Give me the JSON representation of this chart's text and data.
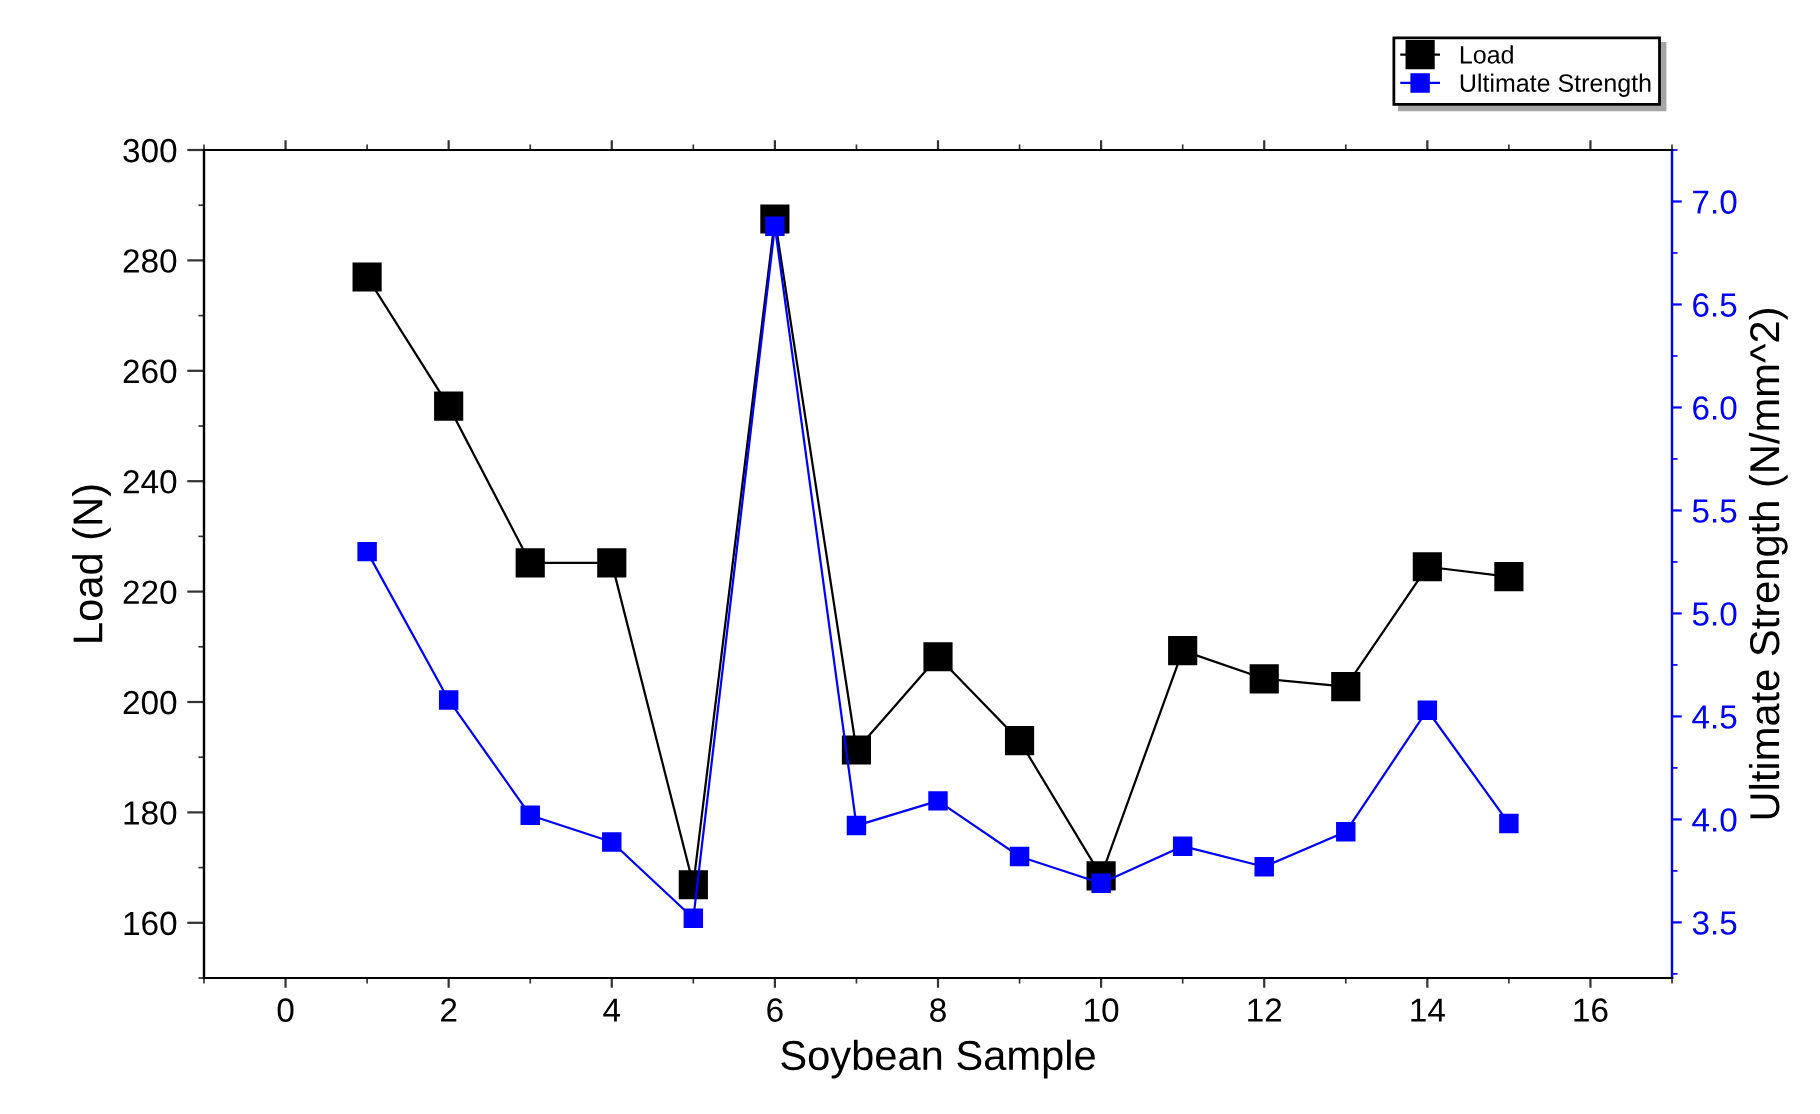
{
  "chart_data": {
    "type": "line",
    "xlabel": "Soybean Sample",
    "ylabel": "Load (N)",
    "y2label": "Ultimate Strength (N/mm^2)",
    "x": [
      1,
      2,
      3,
      4,
      5,
      6,
      7,
      8,
      9,
      10,
      11,
      12,
      13,
      14,
      15
    ],
    "series": [
      {
        "name": "Load",
        "color": "#000000",
        "values": [
          277,
          253.6,
          225.2,
          225.2,
          166.9,
          287.5,
          191.3,
          208.2,
          193.0,
          168.5,
          209.3,
          204.2,
          202.8,
          224.5,
          222.7
        ]
      },
      {
        "name": "Ultimate Strength",
        "color": "#0000ff",
        "axis": "y2",
        "values": [
          5.3,
          4.58,
          4.02,
          3.89,
          3.52,
          6.88,
          3.97,
          4.09,
          3.82,
          3.69,
          3.87,
          3.77,
          3.94,
          4.53,
          3.98
        ]
      }
    ],
    "xlim": [
      -1,
      17
    ],
    "xticks": [
      0,
      2,
      4,
      6,
      8,
      10,
      12,
      14,
      16
    ],
    "ylim": [
      150,
      300
    ],
    "yticks": [
      160,
      180,
      200,
      220,
      240,
      260,
      280,
      300
    ],
    "y2lim": [
      3.23,
      7.25
    ],
    "y2ticks": [
      {
        "value": 3.5,
        "label": "3.5"
      },
      {
        "value": 4.0,
        "label": "4.0"
      },
      {
        "value": 4.5,
        "label": "4.5"
      },
      {
        "value": 5.0,
        "label": "5.0"
      },
      {
        "value": 5.5,
        "label": "5.5"
      },
      {
        "value": 6.0,
        "label": "6.0"
      },
      {
        "value": 6.5,
        "label": "6.5"
      },
      {
        "value": 7.0,
        "label": "7.0"
      }
    ],
    "marker": "square",
    "line_style": "solid",
    "grid": false,
    "legend": "top right"
  }
}
